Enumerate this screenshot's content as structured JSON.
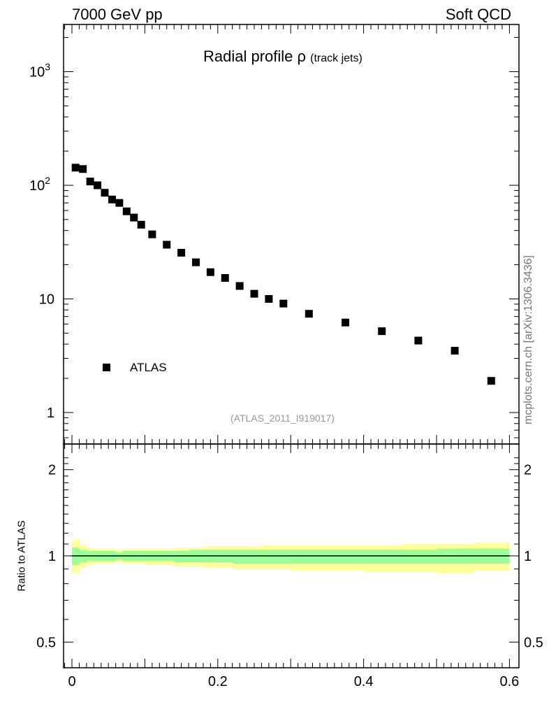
{
  "header": {
    "left": "7000 GeV pp",
    "right": "Soft QCD"
  },
  "title": {
    "main": "Radial profile ρ",
    "sub": "(track jets)"
  },
  "legend": {
    "entry": "ATLAS"
  },
  "analysis_label": "(ATLAS_2011_I919017)",
  "source_label": "mcplots.cern.ch [arXiv:1306.3436]",
  "colors": {
    "marker": "#000000",
    "band_outer": "#ffff99",
    "band_inner": "#99ff99",
    "ref_line": "#000000"
  },
  "chart_data": [
    {
      "type": "scatter",
      "panel": "main",
      "title": "Radial profile ρ (track jets)",
      "xlim": [
        -0.01,
        0.6
      ],
      "ylim": [
        0.6,
        2500
      ],
      "yscale": "log",
      "y_tick_labels": [
        "1",
        "10",
        "10²",
        "10³"
      ],
      "legend_position": "lower-left",
      "series": [
        {
          "name": "ATLAS",
          "x": [
            0.005,
            0.015,
            0.025,
            0.035,
            0.045,
            0.055,
            0.065,
            0.075,
            0.085,
            0.095,
            0.11,
            0.13,
            0.15,
            0.17,
            0.19,
            0.21,
            0.23,
            0.25,
            0.27,
            0.29,
            0.325,
            0.375,
            0.425,
            0.475,
            0.525,
            0.575
          ],
          "y": [
            143,
            139,
            108,
            100,
            86,
            75,
            70,
            59,
            52,
            45,
            37,
            30,
            25.5,
            21,
            17.2,
            15.3,
            13,
            11.1,
            10,
            9.1,
            7.4,
            6.2,
            5.2,
            4.3,
            3.5,
            1.9
          ]
        }
      ]
    },
    {
      "type": "area",
      "panel": "ratio",
      "ylabel": "Ratio to ATLAS",
      "xlim": [
        -0.01,
        0.6
      ],
      "ylim": [
        0.4,
        2.4
      ],
      "yscale": "log",
      "x_tick_labels": [
        "0",
        "0.2",
        "0.4",
        "0.6"
      ],
      "y_tick_labels": [
        "0.5",
        "1",
        "2"
      ],
      "x_edges": [
        0.0,
        0.01,
        0.02,
        0.03,
        0.04,
        0.05,
        0.06,
        0.07,
        0.08,
        0.09,
        0.1,
        0.12,
        0.14,
        0.16,
        0.18,
        0.2,
        0.22,
        0.24,
        0.26,
        0.28,
        0.3,
        0.35,
        0.4,
        0.45,
        0.5,
        0.55,
        0.6
      ],
      "bands": [
        {
          "name": "outer",
          "low": [
            0.87,
            0.91,
            0.93,
            0.94,
            0.94,
            0.94,
            0.95,
            0.94,
            0.94,
            0.94,
            0.93,
            0.93,
            0.92,
            0.92,
            0.91,
            0.91,
            0.9,
            0.9,
            0.9,
            0.9,
            0.89,
            0.89,
            0.88,
            0.88,
            0.87,
            0.89
          ],
          "high": [
            1.14,
            1.09,
            1.07,
            1.06,
            1.06,
            1.06,
            1.05,
            1.06,
            1.06,
            1.06,
            1.06,
            1.06,
            1.07,
            1.07,
            1.08,
            1.08,
            1.08,
            1.08,
            1.09,
            1.09,
            1.09,
            1.09,
            1.09,
            1.1,
            1.1,
            1.11
          ]
        },
        {
          "name": "inner",
          "low": [
            0.93,
            0.95,
            0.96,
            0.96,
            0.96,
            0.96,
            0.97,
            0.96,
            0.96,
            0.96,
            0.96,
            0.96,
            0.95,
            0.95,
            0.95,
            0.95,
            0.94,
            0.94,
            0.94,
            0.94,
            0.94,
            0.94,
            0.94,
            0.94,
            0.94,
            0.94
          ],
          "high": [
            1.07,
            1.05,
            1.04,
            1.04,
            1.04,
            1.04,
            1.03,
            1.04,
            1.04,
            1.04,
            1.04,
            1.04,
            1.04,
            1.05,
            1.05,
            1.05,
            1.05,
            1.05,
            1.05,
            1.05,
            1.05,
            1.05,
            1.05,
            1.05,
            1.06,
            1.06
          ]
        }
      ],
      "reference_line": 1
    }
  ]
}
